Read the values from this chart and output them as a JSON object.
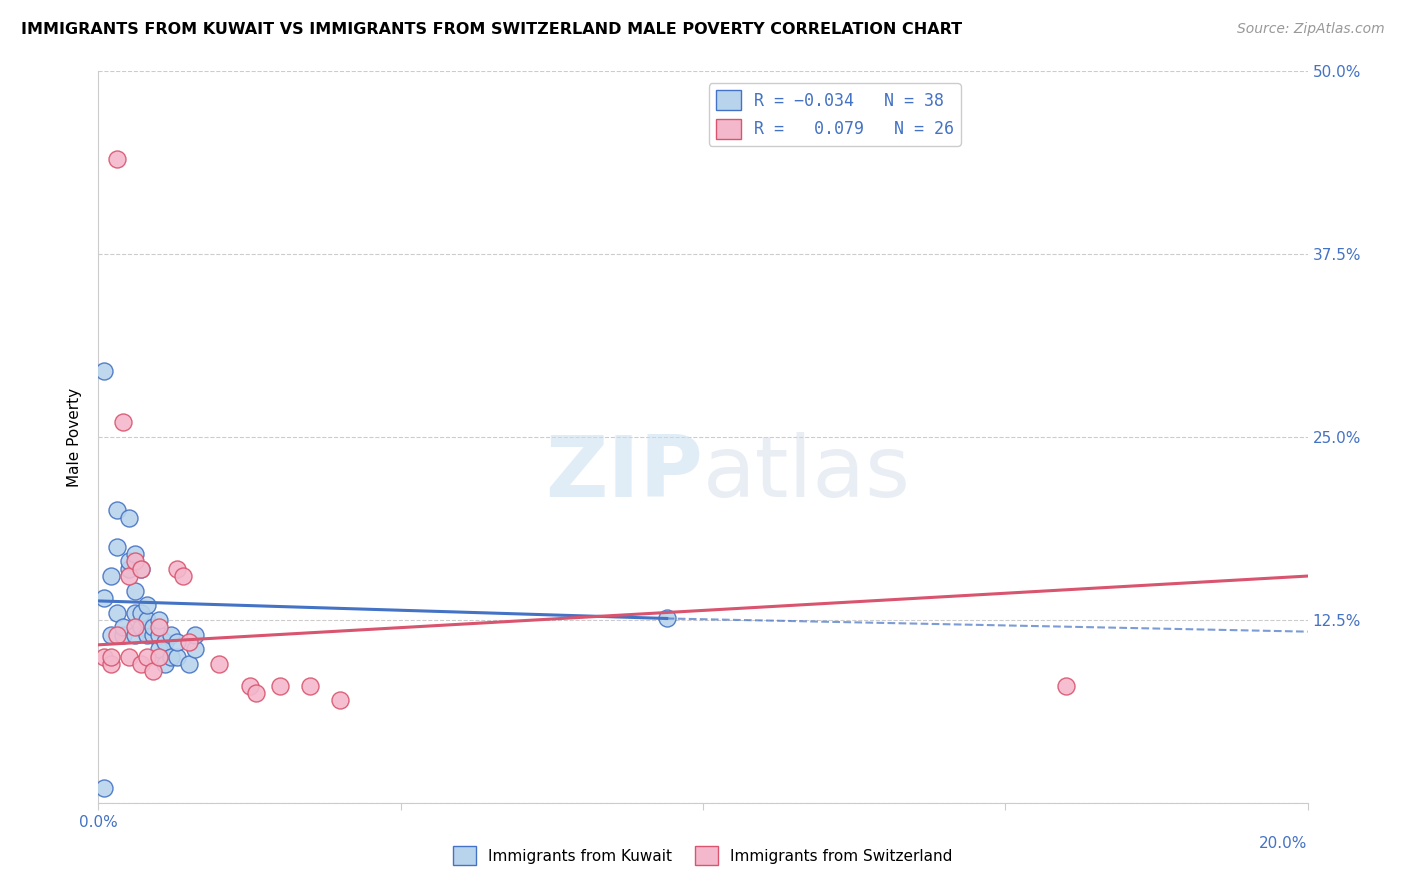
{
  "title": "IMMIGRANTS FROM KUWAIT VS IMMIGRANTS FROM SWITZERLAND MALE POVERTY CORRELATION CHART",
  "source": "Source: ZipAtlas.com",
  "ylabel": "Male Poverty",
  "legend_label1": "Immigrants from Kuwait",
  "legend_label2": "Immigrants from Switzerland",
  "r1": -0.034,
  "n1": 38,
  "r2": 0.079,
  "n2": 26,
  "color1": "#b8d4ed",
  "color2": "#f4b8cc",
  "line_color1": "#4472c4",
  "line_color2": "#d9546e",
  "xlim": [
    0.0,
    0.2
  ],
  "ylim": [
    0.0,
    0.5
  ],
  "xticks": [
    0.0,
    0.05,
    0.1,
    0.15,
    0.2
  ],
  "yticks_right": [
    0.0,
    0.125,
    0.25,
    0.375,
    0.5
  ],
  "yticklabels_right": [
    "",
    "12.5%",
    "25.0%",
    "37.5%",
    "50.0%"
  ],
  "kuwait_x": [
    0.001,
    0.001,
    0.002,
    0.002,
    0.003,
    0.003,
    0.003,
    0.004,
    0.004,
    0.005,
    0.005,
    0.005,
    0.006,
    0.006,
    0.006,
    0.006,
    0.007,
    0.007,
    0.007,
    0.008,
    0.008,
    0.008,
    0.009,
    0.009,
    0.01,
    0.01,
    0.01,
    0.011,
    0.011,
    0.012,
    0.012,
    0.013,
    0.013,
    0.015,
    0.016,
    0.016,
    0.094,
    0.001
  ],
  "kuwait_y": [
    0.01,
    0.14,
    0.115,
    0.155,
    0.13,
    0.175,
    0.2,
    0.115,
    0.12,
    0.16,
    0.165,
    0.195,
    0.115,
    0.13,
    0.145,
    0.17,
    0.12,
    0.13,
    0.16,
    0.115,
    0.125,
    0.135,
    0.115,
    0.12,
    0.105,
    0.115,
    0.125,
    0.095,
    0.11,
    0.1,
    0.115,
    0.1,
    0.11,
    0.095,
    0.105,
    0.115,
    0.126,
    0.295
  ],
  "switzerland_x": [
    0.001,
    0.002,
    0.002,
    0.003,
    0.004,
    0.005,
    0.005,
    0.006,
    0.006,
    0.007,
    0.008,
    0.009,
    0.01,
    0.01,
    0.013,
    0.014,
    0.015,
    0.02,
    0.025,
    0.026,
    0.03,
    0.035,
    0.04,
    0.16,
    0.003,
    0.007
  ],
  "switzerland_y": [
    0.1,
    0.095,
    0.1,
    0.44,
    0.26,
    0.1,
    0.155,
    0.165,
    0.12,
    0.095,
    0.1,
    0.09,
    0.1,
    0.12,
    0.16,
    0.155,
    0.11,
    0.095,
    0.08,
    0.075,
    0.08,
    0.08,
    0.07,
    0.08,
    0.115,
    0.16
  ],
  "trend1_x0": 0.0,
  "trend1_y0": 0.138,
  "trend1_x1": 0.094,
  "trend1_y1": 0.126,
  "trend1_dash_x0": 0.094,
  "trend1_dash_y0": 0.126,
  "trend1_dash_x1": 0.2,
  "trend1_dash_y1": 0.117,
  "trend2_x0": 0.0,
  "trend2_y0": 0.108,
  "trend2_x1": 0.2,
  "trend2_y1": 0.155,
  "background_color": "#ffffff",
  "watermark_zip": "ZIP",
  "watermark_atlas": "atlas",
  "grid_color": "#cccccc"
}
